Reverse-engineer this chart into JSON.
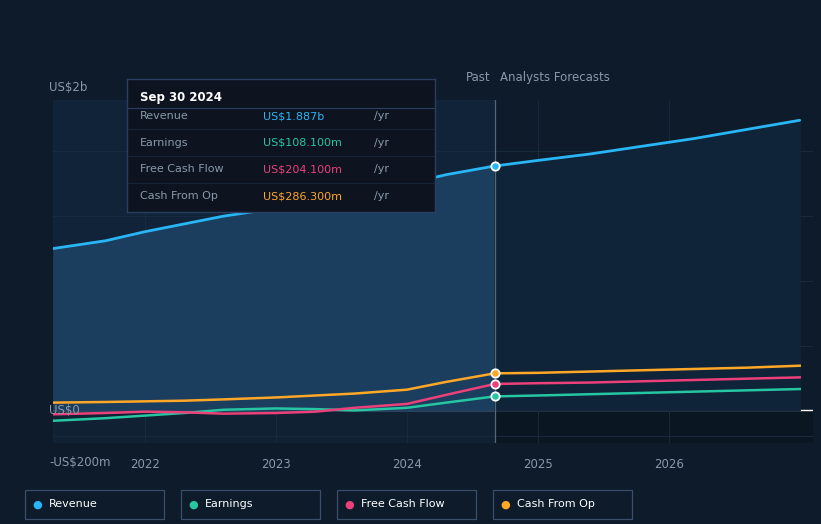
{
  "background_color": "#0d1b2a",
  "plot_bg_color": "#0d1b2a",
  "revenue_color": "#29b6f6",
  "earnings_color": "#26c6a2",
  "fcf_color": "#ec407a",
  "cashop_color": "#ffa726",
  "revenue_fill_past": "#1a3a5c",
  "revenue_fill_future": "#0f2035",
  "ylabel_top": "US$2b",
  "ylabel_bottom": "-US$200m",
  "ylabel_zero": "US$0",
  "x_ticks": [
    2022,
    2023,
    2024,
    2025,
    2026
  ],
  "divider_x": 2024.67,
  "past_label": "Past",
  "forecast_label": "Analysts Forecasts",
  "revenue_data_x": [
    2021.3,
    2021.7,
    2022.0,
    2022.3,
    2022.6,
    2023.0,
    2023.3,
    2023.6,
    2024.0,
    2024.3,
    2024.67,
    2025.0,
    2025.4,
    2025.8,
    2026.2,
    2026.6,
    2027.0
  ],
  "revenue_data_y": [
    1250,
    1310,
    1380,
    1440,
    1500,
    1560,
    1630,
    1690,
    1750,
    1820,
    1887,
    1930,
    1980,
    2040,
    2100,
    2170,
    2240
  ],
  "earnings_data_x": [
    2021.3,
    2021.7,
    2022.0,
    2022.3,
    2022.6,
    2023.0,
    2023.3,
    2023.6,
    2024.0,
    2024.3,
    2024.67,
    2025.0,
    2025.4,
    2025.8,
    2026.2,
    2026.6,
    2027.0
  ],
  "earnings_data_y": [
    -80,
    -60,
    -40,
    -20,
    5,
    15,
    10,
    0,
    20,
    60,
    108,
    115,
    125,
    135,
    145,
    155,
    165
  ],
  "fcf_data_x": [
    2021.3,
    2021.7,
    2022.0,
    2022.3,
    2022.6,
    2023.0,
    2023.3,
    2023.6,
    2024.0,
    2024.3,
    2024.67,
    2025.0,
    2025.4,
    2025.8,
    2026.2,
    2026.6,
    2027.0
  ],
  "fcf_data_y": [
    -30,
    -20,
    -10,
    -15,
    -25,
    -20,
    -10,
    20,
    50,
    120,
    204,
    210,
    215,
    225,
    235,
    245,
    255
  ],
  "cashop_data_x": [
    2021.3,
    2021.7,
    2022.0,
    2022.3,
    2022.6,
    2023.0,
    2023.3,
    2023.6,
    2024.0,
    2024.3,
    2024.67,
    2025.0,
    2025.4,
    2025.8,
    2026.2,
    2026.6,
    2027.0
  ],
  "cashop_data_y": [
    60,
    65,
    70,
    75,
    85,
    100,
    115,
    130,
    160,
    220,
    286,
    290,
    300,
    310,
    320,
    330,
    345
  ],
  "tooltip_bg": "#0d1420",
  "tooltip_border": "#2a3f5f",
  "tooltip_title": "Sep 30 2024",
  "tooltip_rows": [
    {
      "label": "Revenue",
      "value": "US$1.887b",
      "unit": "/yr",
      "color": "#29b6f6"
    },
    {
      "label": "Earnings",
      "value": "US$108.100m",
      "unit": "/yr",
      "color": "#26c6a2"
    },
    {
      "label": "Free Cash Flow",
      "value": "US$204.100m",
      "unit": "/yr",
      "color": "#ec407a"
    },
    {
      "label": "Cash From Op",
      "value": "US$286.300m",
      "unit": "/yr",
      "color": "#ffa726"
    }
  ],
  "legend_items": [
    {
      "label": "Revenue",
      "color": "#29b6f6"
    },
    {
      "label": "Earnings",
      "color": "#26c6a2"
    },
    {
      "label": "Free Cash Flow",
      "color": "#ec407a"
    },
    {
      "label": "Cash From Op",
      "color": "#ffa726"
    }
  ],
  "ylim_min": -250,
  "ylim_max": 2400,
  "xlim_min": 2021.3,
  "xlim_max": 2027.1,
  "grid_color": "#1a2d40",
  "divider_color": "#556677",
  "zero_line_color": "#ffffff",
  "text_color": "#ffffff",
  "text_color_dim": "#8899aa",
  "bottom_strip_color": "#111c28"
}
